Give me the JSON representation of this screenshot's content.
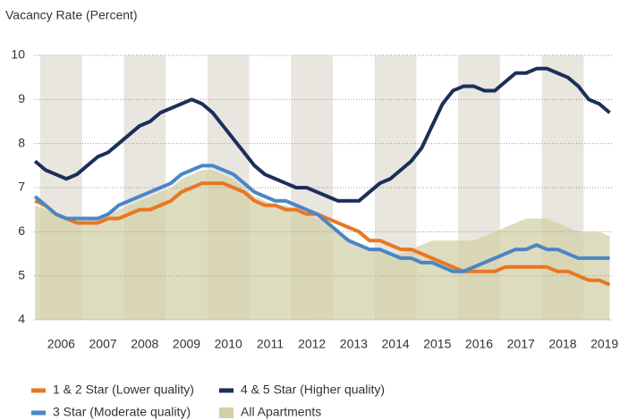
{
  "chart_data": {
    "type": "line",
    "title": "Vacancy Rate (Percent)",
    "x": [
      2005.875,
      2006.125,
      2006.375,
      2006.625,
      2006.875,
      2007.125,
      2007.375,
      2007.625,
      2007.875,
      2008.125,
      2008.375,
      2008.625,
      2008.875,
      2009.125,
      2009.375,
      2009.625,
      2009.875,
      2010.125,
      2010.375,
      2010.625,
      2010.875,
      2011.125,
      2011.375,
      2011.625,
      2011.875,
      2012.125,
      2012.375,
      2012.625,
      2012.875,
      2013.125,
      2013.375,
      2013.625,
      2013.875,
      2014.125,
      2014.375,
      2014.625,
      2014.875,
      2015.125,
      2015.375,
      2015.625,
      2015.875,
      2016.125,
      2016.375,
      2016.625,
      2016.875,
      2017.125,
      2017.375,
      2017.625,
      2017.875,
      2018.125,
      2018.375,
      2018.625,
      2018.875,
      2019.125,
      2019.375,
      2019.625
    ],
    "xlim": [
      2005.85,
      2019.7
    ],
    "xticks": [
      {
        "value": 2006.5,
        "label": "2006"
      },
      {
        "value": 2007.5,
        "label": "2007"
      },
      {
        "value": 2008.5,
        "label": "2008"
      },
      {
        "value": 2009.5,
        "label": "2009"
      },
      {
        "value": 2010.5,
        "label": "2010"
      },
      {
        "value": 2011.5,
        "label": "2011"
      },
      {
        "value": 2012.5,
        "label": "2012"
      },
      {
        "value": 2013.5,
        "label": "2013"
      },
      {
        "value": 2014.5,
        "label": "2014"
      },
      {
        "value": 2015.5,
        "label": "2015"
      },
      {
        "value": 2016.5,
        "label": "2016"
      },
      {
        "value": 2017.5,
        "label": "2017"
      },
      {
        "value": 2018.5,
        "label": "2018"
      },
      {
        "value": 2019.5,
        "label": "2019"
      }
    ],
    "ylim": [
      4,
      10
    ],
    "yticks": [
      4,
      5,
      6,
      7,
      8,
      9,
      10
    ],
    "grid": true,
    "series": [
      {
        "name": "1 & 2 Star (Lower quality)",
        "color": "#e87722",
        "values": [
          6.7,
          6.6,
          6.4,
          6.3,
          6.2,
          6.2,
          6.2,
          6.3,
          6.3,
          6.4,
          6.5,
          6.5,
          6.6,
          6.7,
          6.9,
          7.0,
          7.1,
          7.1,
          7.1,
          7.0,
          6.9,
          6.7,
          6.6,
          6.6,
          6.5,
          6.5,
          6.4,
          6.4,
          6.3,
          6.2,
          6.1,
          6.0,
          5.8,
          5.8,
          5.7,
          5.6,
          5.6,
          5.5,
          5.4,
          5.3,
          5.2,
          5.1,
          5.1,
          5.1,
          5.1,
          5.2,
          5.2,
          5.2,
          5.2,
          5.2,
          5.1,
          5.1,
          5.0,
          4.9,
          4.9,
          4.8
        ]
      },
      {
        "name": "4 & 5 Star (Higher quality)",
        "color": "#1b2f5a",
        "values": [
          7.6,
          7.4,
          7.3,
          7.2,
          7.3,
          7.5,
          7.7,
          7.8,
          8.0,
          8.2,
          8.4,
          8.5,
          8.7,
          8.8,
          8.9,
          9.0,
          8.9,
          8.7,
          8.4,
          8.1,
          7.8,
          7.5,
          7.3,
          7.2,
          7.1,
          7.0,
          7.0,
          6.9,
          6.8,
          6.7,
          6.7,
          6.7,
          6.9,
          7.1,
          7.2,
          7.4,
          7.6,
          7.9,
          8.4,
          8.9,
          9.2,
          9.3,
          9.3,
          9.2,
          9.2,
          9.4,
          9.6,
          9.6,
          9.7,
          9.7,
          9.6,
          9.5,
          9.3,
          9.0,
          8.9,
          8.7
        ]
      },
      {
        "name": "3 Star (Moderate quality)",
        "color": "#4a86c5",
        "values": [
          6.8,
          6.6,
          6.4,
          6.3,
          6.3,
          6.3,
          6.3,
          6.4,
          6.6,
          6.7,
          6.8,
          6.9,
          7.0,
          7.1,
          7.3,
          7.4,
          7.5,
          7.5,
          7.4,
          7.3,
          7.1,
          6.9,
          6.8,
          6.7,
          6.7,
          6.6,
          6.5,
          6.4,
          6.2,
          6.0,
          5.8,
          5.7,
          5.6,
          5.6,
          5.5,
          5.4,
          5.4,
          5.3,
          5.3,
          5.2,
          5.1,
          5.1,
          5.2,
          5.3,
          5.4,
          5.5,
          5.6,
          5.6,
          5.7,
          5.6,
          5.6,
          5.5,
          5.4,
          5.4,
          5.4,
          5.4
        ]
      },
      {
        "name": "All Apartments",
        "color": "#d3d0a8",
        "kind": "area",
        "values": [
          6.6,
          6.5,
          6.4,
          6.3,
          6.3,
          6.3,
          6.3,
          6.4,
          6.5,
          6.6,
          6.7,
          6.8,
          6.9,
          7.0,
          7.2,
          7.3,
          7.4,
          7.4,
          7.3,
          7.2,
          7.0,
          6.8,
          6.7,
          6.6,
          6.6,
          6.5,
          6.4,
          6.3,
          6.2,
          6.0,
          5.8,
          5.7,
          5.6,
          5.6,
          5.5,
          5.5,
          5.6,
          5.7,
          5.8,
          5.8,
          5.8,
          5.8,
          5.8,
          5.9,
          6.0,
          6.1,
          6.2,
          6.3,
          6.3,
          6.3,
          6.2,
          6.1,
          6.0,
          6.0,
          6.0,
          5.9
        ]
      }
    ]
  }
}
